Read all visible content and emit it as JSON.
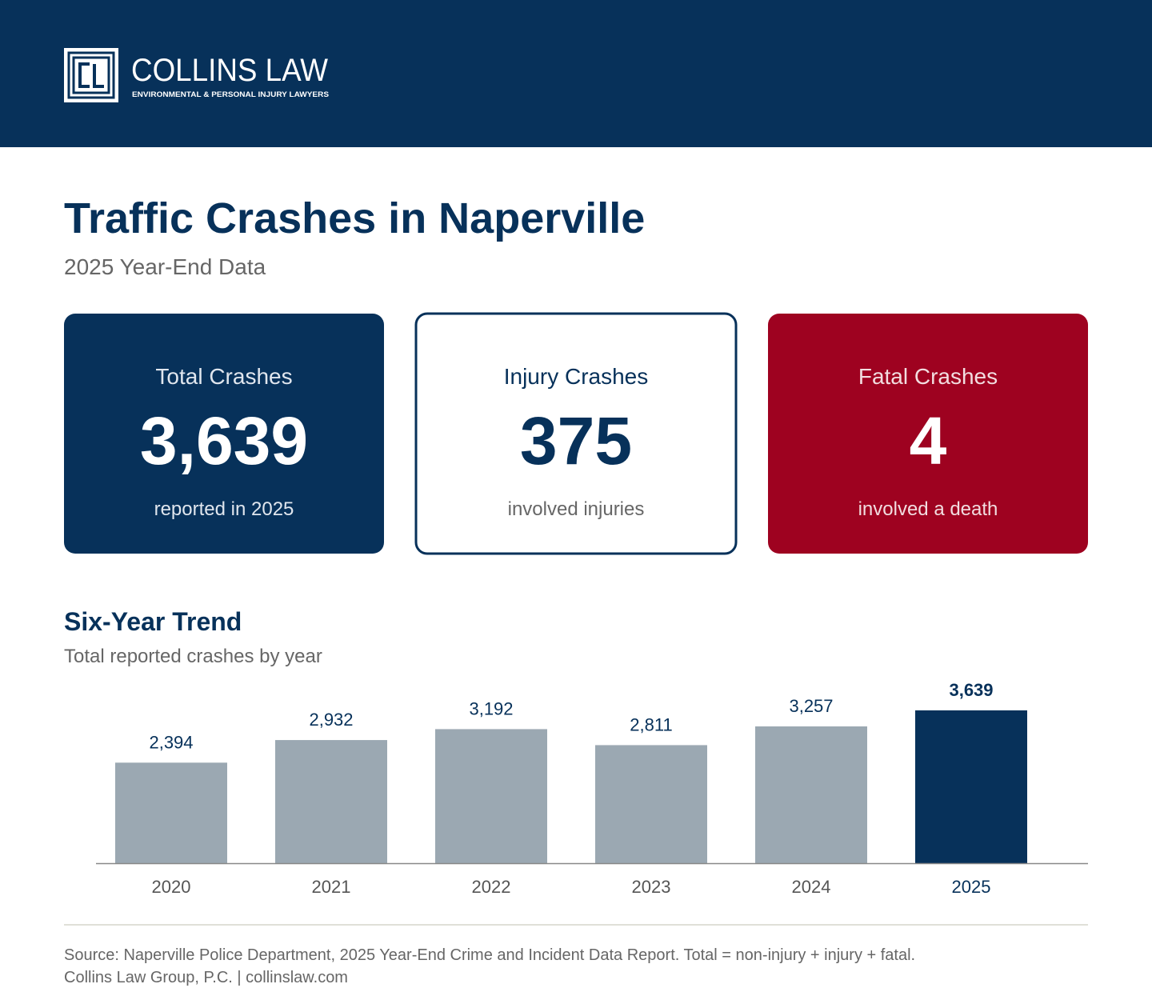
{
  "header": {
    "brand": "COLLINS LAW",
    "tagline": "ENVIRONMENTAL & PERSONAL INJURY LAWYERS"
  },
  "title": "Traffic Crashes in Naperville",
  "subtitle": "2025 Year-End Data",
  "cards": [
    {
      "label": "Total Crashes",
      "value": "3,639",
      "caption": "reported in 2025"
    },
    {
      "label": "Injury Crashes",
      "value": "375",
      "caption": "involved injuries"
    },
    {
      "label": "Fatal Crashes",
      "value": "4",
      "caption": "involved a death"
    }
  ],
  "chart_data": {
    "type": "bar",
    "title": "Six-Year Trend",
    "subtitle": "Total reported crashes by year",
    "categories": [
      "2020",
      "2021",
      "2022",
      "2023",
      "2024",
      "2025"
    ],
    "values": [
      2394,
      2932,
      3192,
      2811,
      3257,
      3639
    ],
    "value_labels": [
      "2,394",
      "2,932",
      "3,192",
      "2,811",
      "3,257",
      "3,639"
    ],
    "colors": [
      "#9ba8b2",
      "#9ba8b2",
      "#9ba8b2",
      "#9ba8b2",
      "#9ba8b2",
      "#07315a"
    ],
    "ylim": [
      0,
      4000
    ]
  },
  "footer": {
    "source": "Source: Naperville Police Department, 2025 Year-End Crime and Incident Data Report. Total = non-injury + injury + fatal.",
    "credit": "Collins Law Group, P.C. | collinslaw.com"
  }
}
